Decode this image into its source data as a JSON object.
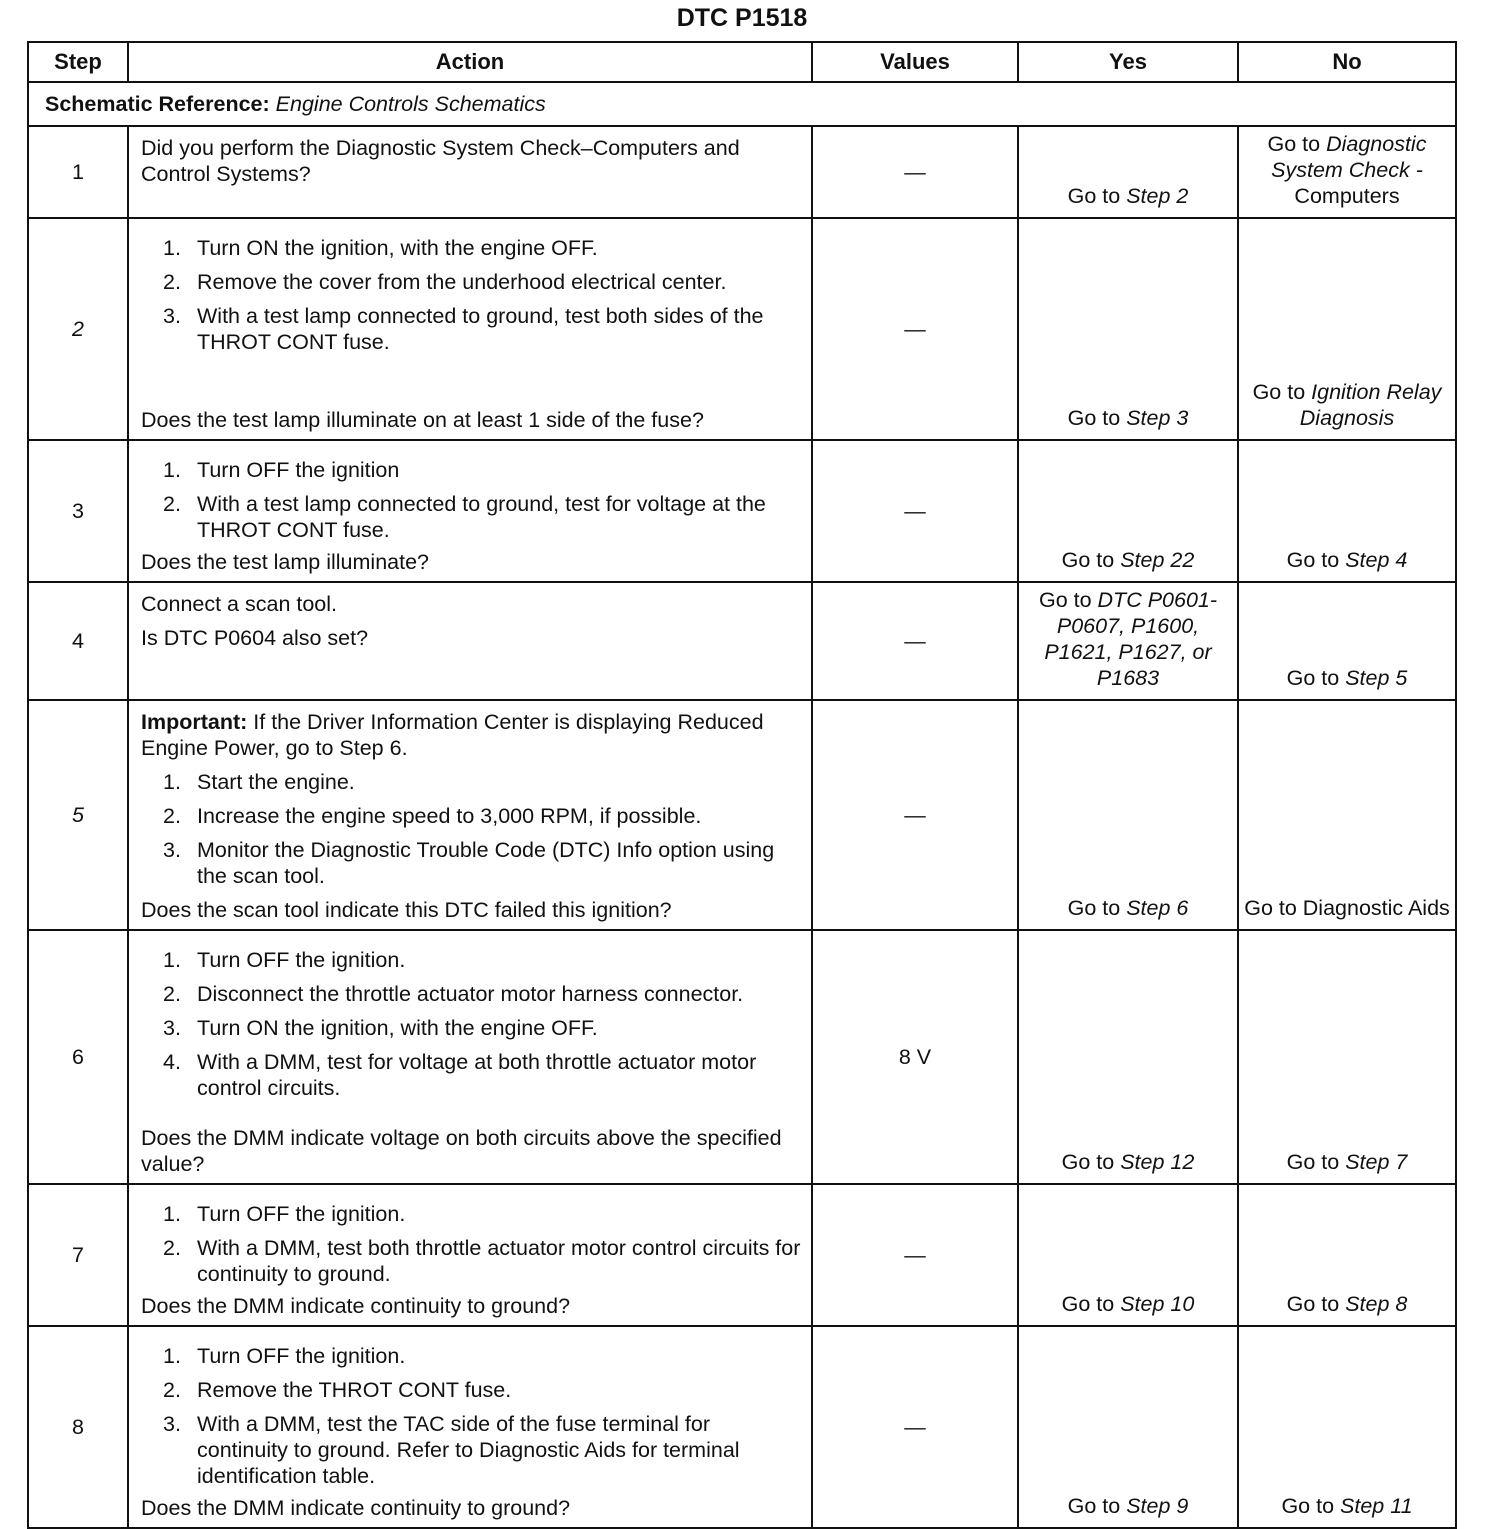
{
  "title": "DTC P1518",
  "headers": [
    "Step",
    "Action",
    "Values",
    "Yes",
    "No"
  ],
  "schematic": {
    "label": "Schematic Reference:",
    "value": "Engine Controls Schematics"
  },
  "rows": [
    {
      "step": "1",
      "step_italic": false,
      "intro_bold": "",
      "intro": "Did you perform the Diagnostic System Check–Computers and Control Systems?",
      "items": [],
      "question": "",
      "value": "—",
      "yes": [
        {
          "t": "Go to "
        },
        {
          "t": "Step 2",
          "i": true
        }
      ],
      "no": [
        {
          "t": "Go to "
        },
        {
          "t": "Diagnostic System Check -",
          "i": true
        },
        {
          "t": " Computers"
        }
      ]
    },
    {
      "step": "2",
      "step_italic": true,
      "intro_bold": "",
      "intro": "",
      "items": [
        "Turn ON the ignition, with the engine OFF.",
        "Remove the cover from the underhood electrical center.",
        "With a test lamp connected to ground, test both sides of the THROT CONT fuse."
      ],
      "question": "Does the test lamp illuminate on at least 1 side of the fuse?",
      "value": "—",
      "yes": [
        {
          "t": "Go to "
        },
        {
          "t": "Step 3",
          "i": true
        }
      ],
      "no": [
        {
          "t": "Go to "
        },
        {
          "t": "Ignition Relay Diagnosis",
          "i": true
        }
      ]
    },
    {
      "step": "3",
      "step_italic": false,
      "intro_bold": "",
      "intro": "",
      "items": [
        "Turn OFF the ignition",
        "With a test lamp connected to ground, test for voltage at the THROT CONT fuse."
      ],
      "question": "Does the test lamp illuminate?",
      "value": "—",
      "yes": [
        {
          "t": "Go to "
        },
        {
          "t": "Step 22",
          "i": true
        }
      ],
      "no": [
        {
          "t": "Go to "
        },
        {
          "t": "Step 4",
          "i": true
        }
      ]
    },
    {
      "step": "4",
      "step_italic": false,
      "intro_bold": "",
      "intro": "Connect a scan tool.",
      "items": [],
      "question_top": "Is DTC P0604 also set?",
      "question": "",
      "value": "—",
      "yes": [
        {
          "t": "Go to "
        },
        {
          "t": "DTC P0601-P0607, P1600, P1621, P1627, or P1683",
          "i": true
        }
      ],
      "no": [
        {
          "t": "Go to "
        },
        {
          "t": "Step 5",
          "i": true
        }
      ]
    },
    {
      "step": "5",
      "step_italic": true,
      "intro_bold": "Important:",
      "intro": " If the Driver Information Center is displaying Reduced Engine Power, go to Step 6.",
      "items": [
        "Start the engine.",
        "Increase the engine speed to 3,000 RPM, if possible.",
        "Monitor the Diagnostic Trouble Code (DTC) Info option using the scan tool."
      ],
      "question": "Does the scan tool indicate this DTC failed this ignition?",
      "value": "—",
      "yes": [
        {
          "t": "Go to "
        },
        {
          "t": "Step 6",
          "i": true
        }
      ],
      "no": [
        {
          "t": "Go to Diagnostic Aids"
        }
      ]
    },
    {
      "step": "6",
      "step_italic": false,
      "intro_bold": "",
      "intro": "",
      "items": [
        "Turn OFF the ignition.",
        "Disconnect the throttle actuator motor harness connector.",
        "Turn ON the ignition, with the engine OFF.",
        "With a DMM, test for voltage at both throttle actuator motor control circuits."
      ],
      "question": "Does the DMM indicate voltage on both circuits above the specified value?",
      "value": "8 V",
      "yes": [
        {
          "t": "Go to "
        },
        {
          "t": "Step 12",
          "i": true
        }
      ],
      "no": [
        {
          "t": "Go to "
        },
        {
          "t": "Step 7",
          "i": true
        }
      ]
    },
    {
      "step": "7",
      "step_italic": false,
      "intro_bold": "",
      "intro": "",
      "items": [
        "Turn OFF the ignition.",
        "With a DMM, test both throttle actuator motor control circuits for continuity to ground."
      ],
      "question": "Does the DMM indicate continuity to ground?",
      "value": "—",
      "yes": [
        {
          "t": "Go to "
        },
        {
          "t": "Step 10",
          "i": true
        }
      ],
      "no": [
        {
          "t": "Go to "
        },
        {
          "t": "Step 8",
          "i": true
        }
      ]
    },
    {
      "step": "8",
      "step_italic": false,
      "intro_bold": "",
      "intro": "",
      "items": [
        "Turn OFF the ignition.",
        "Remove the THROT CONT fuse.",
        "With a DMM, test the TAC side of the fuse terminal for continuity to ground. Refer to Diagnostic Aids for terminal identification table."
      ],
      "question": "Does the DMM indicate continuity to ground?",
      "value": "—",
      "yes": [
        {
          "t": "Go to "
        },
        {
          "t": "Step 9",
          "i": true
        }
      ],
      "no": [
        {
          "t": "Go to "
        },
        {
          "t": "Step 11",
          "i": true
        }
      ]
    }
  ]
}
